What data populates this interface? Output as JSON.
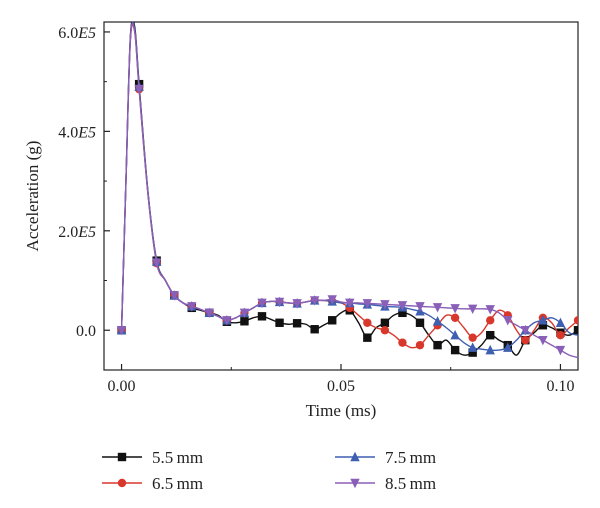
{
  "chart_data": {
    "type": "line",
    "xlabel": "Time (ms)",
    "ylabel": "Acceleration (g)",
    "xlim": [
      -0.004,
      0.104
    ],
    "ylim": [
      -80000,
      620000
    ],
    "x_ticks": [
      0.0,
      0.05,
      0.1
    ],
    "x_tick_labels": [
      "0.00",
      "0.05",
      "0.10"
    ],
    "y_ticks": [
      0,
      200000,
      400000,
      600000
    ],
    "y_tick_labels": [
      {
        "base": "0.0",
        "exp": ""
      },
      {
        "base": "2.0",
        "exp": "E5"
      },
      {
        "base": "4.0",
        "exp": "E5"
      },
      {
        "base": "6.0",
        "exp": "E5"
      }
    ],
    "legend_position": "bottom",
    "series": [
      {
        "name": "5.5 mm",
        "color": "#111111",
        "marker": "square",
        "x": [
          0.0,
          0.001,
          0.002,
          0.003,
          0.004,
          0.006,
          0.008,
          0.01,
          0.012,
          0.014,
          0.016,
          0.018,
          0.02,
          0.022,
          0.024,
          0.026,
          0.028,
          0.03,
          0.032,
          0.034,
          0.036,
          0.038,
          0.04,
          0.042,
          0.044,
          0.046,
          0.048,
          0.05,
          0.052,
          0.054,
          0.056,
          0.058,
          0.06,
          0.062,
          0.064,
          0.066,
          0.068,
          0.07,
          0.072,
          0.074,
          0.076,
          0.078,
          0.08,
          0.082,
          0.084,
          0.086,
          0.088,
          0.09,
          0.092,
          0.094,
          0.096,
          0.098,
          0.1,
          0.102,
          0.104
        ],
        "y": [
          0,
          300000,
          590000,
          610000,
          495000,
          280000,
          140000,
          100000,
          70000,
          55000,
          45000,
          40000,
          35000,
          30000,
          17000,
          15000,
          18000,
          25000,
          28000,
          22000,
          15000,
          12000,
          14000,
          12000,
          2000,
          10000,
          20000,
          35000,
          40000,
          15000,
          -15000,
          5000,
          15000,
          30000,
          35000,
          30000,
          15000,
          -10000,
          -30000,
          -20000,
          -40000,
          -50000,
          -45000,
          -30000,
          -10000,
          -20000,
          -30000,
          -50000,
          -20000,
          -5000,
          10000,
          5000,
          -5000,
          -10000,
          0
        ],
        "markers_x": [
          0.0,
          0.004,
          0.008,
          0.012,
          0.016,
          0.02,
          0.024,
          0.028,
          0.032,
          0.036,
          0.04,
          0.044,
          0.048,
          0.052,
          0.056,
          0.06,
          0.064,
          0.068,
          0.072,
          0.076,
          0.08,
          0.084,
          0.088,
          0.092,
          0.096,
          0.1,
          0.104
        ]
      },
      {
        "name": "6.5 mm",
        "color": "#d8372b",
        "marker": "circle",
        "x": [
          0.0,
          0.001,
          0.002,
          0.003,
          0.004,
          0.006,
          0.008,
          0.01,
          0.012,
          0.014,
          0.016,
          0.018,
          0.02,
          0.022,
          0.024,
          0.026,
          0.028,
          0.03,
          0.032,
          0.034,
          0.036,
          0.038,
          0.04,
          0.042,
          0.044,
          0.046,
          0.048,
          0.05,
          0.052,
          0.054,
          0.056,
          0.058,
          0.06,
          0.062,
          0.064,
          0.066,
          0.068,
          0.07,
          0.072,
          0.074,
          0.076,
          0.078,
          0.08,
          0.082,
          0.084,
          0.086,
          0.088,
          0.09,
          0.092,
          0.094,
          0.096,
          0.098,
          0.1,
          0.102,
          0.104
        ],
        "y": [
          0,
          300000,
          580000,
          600000,
          485000,
          275000,
          135000,
          100000,
          70000,
          55000,
          48000,
          42000,
          35000,
          28000,
          20000,
          25000,
          35000,
          45000,
          55000,
          58000,
          57000,
          55000,
          54000,
          57000,
          60000,
          60000,
          58000,
          55000,
          45000,
          30000,
          15000,
          5000,
          0,
          -10000,
          -25000,
          -35000,
          -30000,
          -10000,
          10000,
          30000,
          25000,
          5000,
          -15000,
          -5000,
          20000,
          40000,
          30000,
          0,
          -20000,
          0,
          25000,
          15000,
          -10000,
          5000,
          20000
        ],
        "markers_x": [
          0.0,
          0.004,
          0.008,
          0.012,
          0.016,
          0.02,
          0.024,
          0.028,
          0.032,
          0.036,
          0.04,
          0.044,
          0.048,
          0.052,
          0.056,
          0.06,
          0.064,
          0.068,
          0.072,
          0.076,
          0.08,
          0.084,
          0.088,
          0.092,
          0.096,
          0.1,
          0.104
        ]
      },
      {
        "name": "7.5 mm",
        "color": "#3f5fb0",
        "marker": "triangle-up",
        "x": [
          0.0,
          0.001,
          0.002,
          0.003,
          0.004,
          0.006,
          0.008,
          0.01,
          0.012,
          0.014,
          0.016,
          0.018,
          0.02,
          0.022,
          0.024,
          0.026,
          0.028,
          0.03,
          0.032,
          0.034,
          0.036,
          0.038,
          0.04,
          0.042,
          0.044,
          0.046,
          0.048,
          0.05,
          0.052,
          0.054,
          0.056,
          0.058,
          0.06,
          0.062,
          0.064,
          0.066,
          0.068,
          0.07,
          0.072,
          0.074,
          0.076,
          0.078,
          0.08,
          0.082,
          0.084,
          0.086,
          0.088,
          0.09,
          0.092,
          0.094,
          0.096,
          0.098,
          0.1,
          0.102,
          0.104
        ],
        "y": [
          0,
          300000,
          585000,
          605000,
          490000,
          278000,
          138000,
          100000,
          70000,
          55000,
          48000,
          42000,
          35000,
          28000,
          20000,
          25000,
          35000,
          45000,
          55000,
          58000,
          57000,
          55000,
          54000,
          57000,
          60000,
          60000,
          58000,
          55000,
          55000,
          53000,
          52000,
          50000,
          48000,
          47000,
          46000,
          42000,
          38000,
          30000,
          18000,
          5000,
          -10000,
          -25000,
          -35000,
          -38000,
          -40000,
          -40000,
          -35000,
          -20000,
          0,
          15000,
          20000,
          25000,
          15000,
          -5000,
          -10000
        ],
        "markers_x": [
          0.0,
          0.004,
          0.008,
          0.012,
          0.016,
          0.02,
          0.024,
          0.028,
          0.032,
          0.036,
          0.04,
          0.044,
          0.048,
          0.052,
          0.056,
          0.06,
          0.064,
          0.068,
          0.072,
          0.076,
          0.08,
          0.084,
          0.088,
          0.092,
          0.096,
          0.1
        ]
      },
      {
        "name": "8.5 mm",
        "color": "#8a5fb8",
        "marker": "triangle-down",
        "x": [
          0.0,
          0.001,
          0.002,
          0.003,
          0.004,
          0.006,
          0.008,
          0.01,
          0.012,
          0.014,
          0.016,
          0.018,
          0.02,
          0.022,
          0.024,
          0.026,
          0.028,
          0.03,
          0.032,
          0.034,
          0.036,
          0.038,
          0.04,
          0.042,
          0.044,
          0.046,
          0.048,
          0.05,
          0.052,
          0.054,
          0.056,
          0.058,
          0.06,
          0.062,
          0.064,
          0.066,
          0.068,
          0.07,
          0.072,
          0.074,
          0.076,
          0.078,
          0.08,
          0.082,
          0.084,
          0.086,
          0.088,
          0.09,
          0.092,
          0.094,
          0.096,
          0.098,
          0.1,
          0.102,
          0.104
        ],
        "y": [
          0,
          300000,
          585000,
          600000,
          485000,
          276000,
          136000,
          100000,
          70000,
          55000,
          48000,
          42000,
          35000,
          28000,
          20000,
          25000,
          35000,
          45000,
          55000,
          58000,
          57000,
          55000,
          54000,
          57000,
          60000,
          60000,
          62000,
          57000,
          55000,
          55000,
          54000,
          53000,
          52000,
          51000,
          50000,
          49000,
          48000,
          47000,
          46000,
          45000,
          44000,
          43000,
          43000,
          43000,
          42000,
          35000,
          20000,
          10000,
          0,
          -10000,
          -20000,
          -30000,
          -40000,
          -50000,
          -55000
        ],
        "markers_x": [
          0.0,
          0.004,
          0.008,
          0.012,
          0.016,
          0.02,
          0.024,
          0.028,
          0.032,
          0.036,
          0.04,
          0.044,
          0.048,
          0.052,
          0.056,
          0.06,
          0.064,
          0.068,
          0.072,
          0.076,
          0.08,
          0.084,
          0.088,
          0.092,
          0.096,
          0.1
        ]
      }
    ]
  }
}
